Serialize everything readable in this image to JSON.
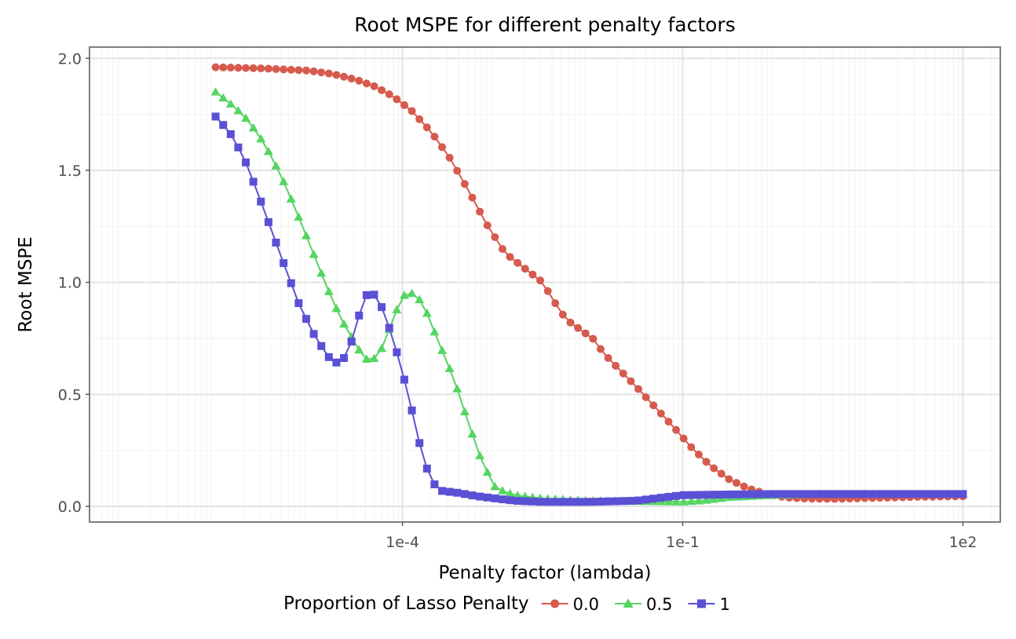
{
  "chart_data": {
    "type": "line",
    "title": "Root MSPE for different penalty factors",
    "xlabel": "Penalty factor (lambda)",
    "ylabel": "Root MSPE",
    "x_scale": "log10",
    "xlim_log10": [
      -7.35,
      2.4
    ],
    "ylim": [
      -0.07,
      2.05
    ],
    "x_ticks": [
      {
        "log10": -4,
        "label": "1e-4"
      },
      {
        "log10": -1,
        "label": "1e-1"
      },
      {
        "log10": 2,
        "label": "1e2"
      }
    ],
    "y_ticks": [
      {
        "value": 0.0,
        "label": "0.0"
      },
      {
        "value": 0.5,
        "label": "0.5"
      },
      {
        "value": 1.0,
        "label": "1.0"
      },
      {
        "value": 1.5,
        "label": "1.5"
      },
      {
        "value": 2.0,
        "label": "2.0"
      }
    ],
    "grid": true,
    "x_log10": {
      "start": -6.0,
      "end": 2.0,
      "count": 100
    },
    "legend": {
      "title": "Proportion of Lasso Penalty",
      "position": "bottom",
      "entries": [
        {
          "label": "0.0",
          "series": 0
        },
        {
          "label": "0.5",
          "series": 1
        },
        {
          "label": "1",
          "series": 2
        }
      ]
    },
    "series": [
      {
        "name": "0.0",
        "color": "#d65a4d",
        "marker": "circle",
        "anchors": [
          [
            -6.0,
            1.96
          ],
          [
            -5.5,
            1.955
          ],
          [
            -5.0,
            1.945
          ],
          [
            -4.75,
            1.93
          ],
          [
            -4.5,
            1.905
          ],
          [
            -4.3,
            1.875
          ],
          [
            -4.1,
            1.83
          ],
          [
            -3.9,
            1.765
          ],
          [
            -3.7,
            1.675
          ],
          [
            -3.5,
            1.56
          ],
          [
            -3.3,
            1.415
          ],
          [
            -3.1,
            1.26
          ],
          [
            -2.9,
            1.13
          ],
          [
            -2.7,
            1.065
          ],
          [
            -2.5,
            1.0
          ],
          [
            -2.4,
            0.93
          ],
          [
            -2.25,
            0.835
          ],
          [
            -2.1,
            0.79
          ],
          [
            -1.95,
            0.745
          ],
          [
            -1.85,
            0.685
          ],
          [
            -1.7,
            0.62
          ],
          [
            -1.5,
            0.535
          ],
          [
            -1.3,
            0.445
          ],
          [
            -1.1,
            0.355
          ],
          [
            -0.9,
            0.26
          ],
          [
            -0.7,
            0.18
          ],
          [
            -0.5,
            0.12
          ],
          [
            -0.3,
            0.08
          ],
          [
            -0.1,
            0.055
          ],
          [
            0.1,
            0.04
          ],
          [
            0.3,
            0.035
          ],
          [
            0.6,
            0.033
          ],
          [
            1.0,
            0.037
          ],
          [
            1.5,
            0.042
          ],
          [
            2.0,
            0.045
          ]
        ]
      },
      {
        "name": "0.5",
        "color": "#55d561",
        "marker": "triangle",
        "anchors": [
          [
            -6.0,
            1.85
          ],
          [
            -5.85,
            1.8
          ],
          [
            -5.7,
            1.745
          ],
          [
            -5.55,
            1.665
          ],
          [
            -5.4,
            1.56
          ],
          [
            -5.25,
            1.43
          ],
          [
            -5.1,
            1.28
          ],
          [
            -4.95,
            1.125
          ],
          [
            -4.8,
            0.97
          ],
          [
            -4.65,
            0.83
          ],
          [
            -4.5,
            0.725
          ],
          [
            -4.42,
            0.665
          ],
          [
            -4.35,
            0.65
          ],
          [
            -4.28,
            0.665
          ],
          [
            -4.2,
            0.72
          ],
          [
            -4.1,
            0.84
          ],
          [
            -4.0,
            0.935
          ],
          [
            -3.94,
            0.955
          ],
          [
            -3.85,
            0.945
          ],
          [
            -3.75,
            0.875
          ],
          [
            -3.6,
            0.72
          ],
          [
            -3.45,
            0.57
          ],
          [
            -3.3,
            0.38
          ],
          [
            -3.15,
            0.2
          ],
          [
            -3.0,
            0.08
          ],
          [
            -2.8,
            0.05
          ],
          [
            -2.5,
            0.035
          ],
          [
            -2.0,
            0.025
          ],
          [
            -1.0,
            0.02
          ],
          [
            -0.8,
            0.025
          ],
          [
            -0.5,
            0.04
          ],
          [
            0.0,
            0.05
          ],
          [
            0.5,
            0.055
          ],
          [
            1.0,
            0.055
          ],
          [
            2.0,
            0.055
          ]
        ]
      },
      {
        "name": "1",
        "color": "#5a50d5",
        "marker": "square",
        "anchors": [
          [
            -6.0,
            1.74
          ],
          [
            -5.85,
            1.67
          ],
          [
            -5.7,
            1.56
          ],
          [
            -5.55,
            1.4
          ],
          [
            -5.4,
            1.23
          ],
          [
            -5.25,
            1.06
          ],
          [
            -5.1,
            0.895
          ],
          [
            -4.95,
            0.77
          ],
          [
            -4.8,
            0.67
          ],
          [
            -4.7,
            0.64
          ],
          [
            -4.6,
            0.67
          ],
          [
            -4.5,
            0.79
          ],
          [
            -4.42,
            0.93
          ],
          [
            -4.35,
            0.955
          ],
          [
            -4.28,
            0.94
          ],
          [
            -4.2,
            0.87
          ],
          [
            -4.1,
            0.745
          ],
          [
            -4.0,
            0.6
          ],
          [
            -3.9,
            0.43
          ],
          [
            -3.8,
            0.25
          ],
          [
            -3.7,
            0.12
          ],
          [
            -3.6,
            0.07
          ],
          [
            -3.4,
            0.06
          ],
          [
            -3.2,
            0.045
          ],
          [
            -3.0,
            0.035
          ],
          [
            -2.8,
            0.025
          ],
          [
            -2.5,
            0.02
          ],
          [
            -2.0,
            0.02
          ],
          [
            -1.5,
            0.025
          ],
          [
            -1.2,
            0.04
          ],
          [
            -1.0,
            0.05
          ],
          [
            -0.5,
            0.053
          ],
          [
            0.0,
            0.055
          ],
          [
            1.0,
            0.055
          ],
          [
            2.0,
            0.055
          ]
        ]
      }
    ]
  }
}
